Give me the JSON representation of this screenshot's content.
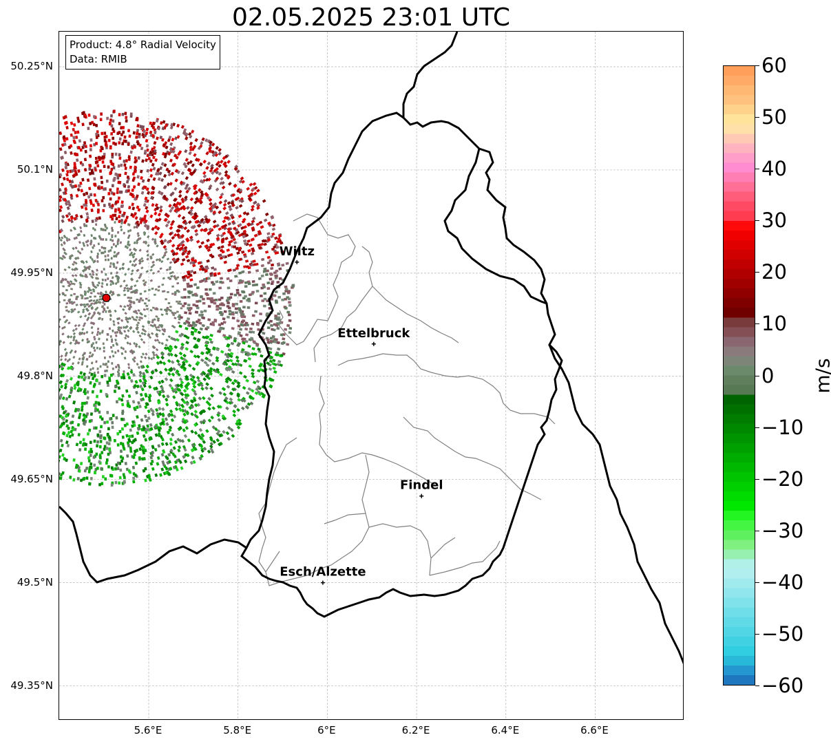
{
  "title": "02.05.2025 23:01 UTC",
  "info": {
    "product": "Product: 4.8° Radial Velocity",
    "data": "Data: RMIB"
  },
  "map": {
    "lon_range": [
      5.4,
      6.8
    ],
    "lat_range": [
      49.3,
      50.3
    ],
    "lat_ticks": [
      {
        "value": 50.25,
        "label": "50.25°N"
      },
      {
        "value": 50.1,
        "label": "50.1°N"
      },
      {
        "value": 49.95,
        "label": "49.95°N"
      },
      {
        "value": 49.8,
        "label": "49.8°N"
      },
      {
        "value": 49.65,
        "label": "49.65°N"
      },
      {
        "value": 49.5,
        "label": "49.5°N"
      },
      {
        "value": 49.35,
        "label": "49.35°N"
      }
    ],
    "lon_ticks": [
      {
        "value": 5.6,
        "label": "5.6°E"
      },
      {
        "value": 5.8,
        "label": "5.8°E"
      },
      {
        "value": 6.0,
        "label": "6°E"
      },
      {
        "value": 6.2,
        "label": "6.2°E"
      },
      {
        "value": 6.4,
        "label": "6.4°E"
      },
      {
        "value": 6.6,
        "label": "6.6°E"
      }
    ],
    "radar_site": {
      "lon": 5.505,
      "lat": 49.914
    },
    "cities": [
      {
        "name": "Wiltz",
        "lon": 5.932,
        "lat": 49.966
      },
      {
        "name": "Ettelbruck",
        "lon": 6.104,
        "lat": 49.847
      },
      {
        "name": "Findel",
        "lon": 6.211,
        "lat": 49.626
      },
      {
        "name": "Esch/Alzette",
        "lon": 5.99,
        "lat": 49.5
      }
    ]
  },
  "colorbar": {
    "unit": "m/s",
    "min": -60,
    "max": 60,
    "ticks": [
      {
        "value": 60,
        "label": "60"
      },
      {
        "value": 50,
        "label": "50"
      },
      {
        "value": 40,
        "label": "40"
      },
      {
        "value": 30,
        "label": "30"
      },
      {
        "value": 20,
        "label": "20"
      },
      {
        "value": 10,
        "label": "10"
      },
      {
        "value": 0,
        "label": "0"
      },
      {
        "value": -10,
        "label": "−10"
      },
      {
        "value": -20,
        "label": "−20"
      },
      {
        "value": -30,
        "label": "−30"
      },
      {
        "value": -40,
        "label": "−40"
      },
      {
        "value": -50,
        "label": "−50"
      },
      {
        "value": -60,
        "label": "−60"
      }
    ],
    "colors_top_to_bottom": [
      "#ff9f5a",
      "#ffaa66",
      "#ffb873",
      "#ffc27e",
      "#ffd28c",
      "#ffe39b",
      "#ffe0a8",
      "#ffc9b4",
      "#ffb2bf",
      "#ff9ec9",
      "#ff8bd1",
      "#ff7eb3",
      "#ff6f96",
      "#ff5d7a",
      "#ff4a63",
      "#ff3c50",
      "#ff0a0a",
      "#f00000",
      "#e00000",
      "#d00000",
      "#c00000",
      "#b00000",
      "#a00000",
      "#900000",
      "#800000",
      "#700000",
      "#7a3b3d",
      "#845055",
      "#8a6670",
      "#8b7a7c",
      "#7c8578",
      "#6b8a6b",
      "#5f7f5d",
      "#577a55",
      "#006400",
      "#007000",
      "#007c00",
      "#008800",
      "#009400",
      "#00a000",
      "#00ac00",
      "#00b800",
      "#00c400",
      "#00d000",
      "#00dc00",
      "#00e800",
      "#22f522",
      "#44f544",
      "#5ff05f",
      "#80f080",
      "#98f0b0",
      "#b0f0e8",
      "#b0eef0",
      "#a0eaee",
      "#90e6ec",
      "#80e2ea",
      "#70dee8",
      "#60dae6",
      "#50d6e4",
      "#40d2e2",
      "#30cee0",
      "#28b8d8",
      "#2496d0",
      "#1f77c0"
    ]
  }
}
